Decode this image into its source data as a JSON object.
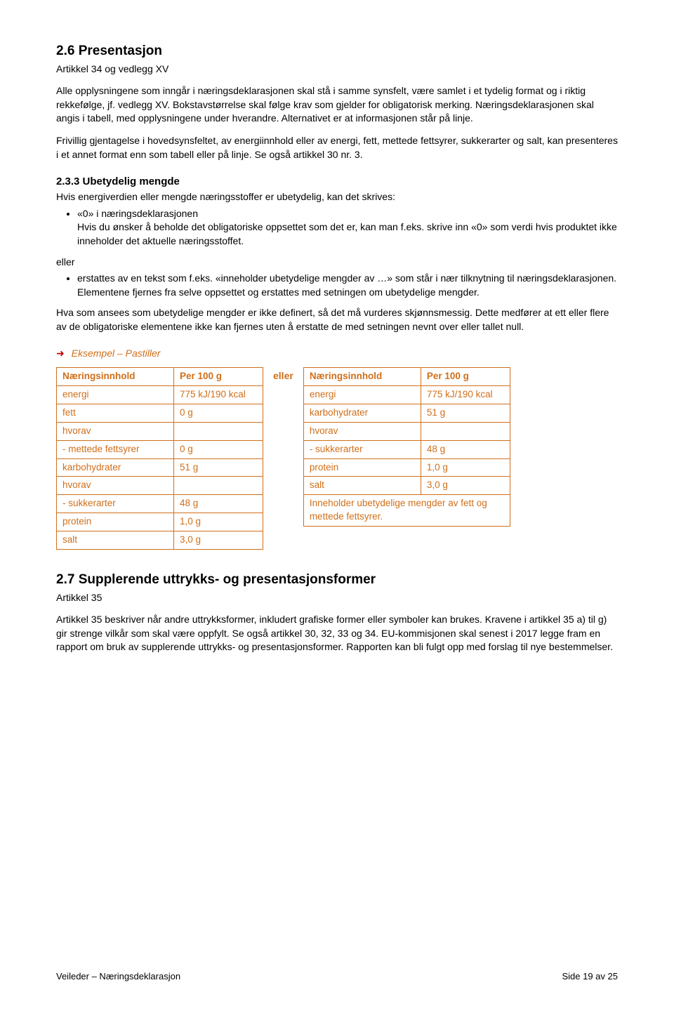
{
  "colors": {
    "accent": "#d06f1a",
    "arrow": "#c00000",
    "text": "#000000",
    "background": "#ffffff"
  },
  "section26": {
    "heading": "2.6 Presentasjon",
    "subheading": "Artikkel 34 og vedlegg XV",
    "para1": "Alle opplysningene som inngår i næringsdeklarasjonen skal stå i samme synsfelt, være samlet i et tydelig format og i riktig rekkefølge, jf. vedlegg XV. Bokstavstørrelse skal følge krav som gjelder for obligatorisk merking. Næringsdeklarasjonen skal angis i tabell, med opplysningene under hverandre. Alternativet er at informasjonen står på linje.",
    "para2": "Frivillig gjentagelse i hovedsynsfeltet, av energiinnhold eller av energi, fett, mettede fettsyrer, sukkerarter og salt, kan presenteres i et annet format enn som tabell eller på linje. Se også artikkel 30 nr. 3."
  },
  "section233": {
    "heading": "2.3.3 Ubetydelig mengde",
    "intro": "Hvis energiverdien eller mengde næringsstoffer er ubetydelig, kan det skrives:",
    "bullet1_lead": "«0» i næringsdeklarasjonen",
    "bullet1_body": "Hvis du ønsker å beholde det obligatoriske oppsettet som det er, kan man f.eks. skrive inn «0» som verdi hvis produktet ikke inneholder det aktuelle næringsstoffet.",
    "eller": "eller",
    "bullet2": "erstattes av en tekst som f.eks. «inneholder ubetydelige mengder av …» som står i nær tilknytning til næringsdeklarasjonen. Elementene fjernes fra selve oppsettet og erstattes med setningen om ubetydelige mengder.",
    "para_after": "Hva som ansees som ubetydelige mengder er ikke definert, så det må vurderes skjønnsmessig. Dette medfører at ett eller flere av de obligatoriske elementene ikke kan fjernes uten å erstatte de med setningen nevnt over eller tallet null."
  },
  "example": {
    "title": "Eksempel – Pastiller",
    "eller": "eller",
    "table_left": {
      "header": [
        "Næringsinnhold",
        "Per 100 g"
      ],
      "rows": [
        [
          "energi",
          "775 kJ/190 kcal"
        ],
        [
          "fett",
          "0 g"
        ],
        [
          "hvorav",
          ""
        ],
        [
          "- mettede fettsyrer",
          "0 g"
        ],
        [
          "karbohydrater",
          "51 g"
        ],
        [
          "hvorav",
          ""
        ],
        [
          "- sukkerarter",
          "48 g"
        ],
        [
          "protein",
          "1,0 g"
        ],
        [
          "salt",
          "3,0 g"
        ]
      ],
      "col_widths": [
        "150px",
        "110px"
      ]
    },
    "table_right": {
      "header": [
        "Næringsinnhold",
        "Per 100 g"
      ],
      "rows": [
        [
          "energi",
          "775 kJ/190 kcal"
        ],
        [
          "karbohydrater",
          "51 g"
        ],
        [
          "hvorav",
          ""
        ],
        [
          "- sukkerarter",
          "48 g"
        ],
        [
          "protein",
          "1,0 g"
        ],
        [
          "salt",
          "3,0 g"
        ]
      ],
      "footer_merged": "Inneholder ubetydelige mengder av fett og mettede fettsyrer.",
      "col_widths": [
        "150px",
        "110px"
      ]
    }
  },
  "section27": {
    "heading": "2.7 Supplerende uttrykks- og presentasjonsformer",
    "subheading": "Artikkel 35",
    "para": "Artikkel 35 beskriver når andre uttrykksformer, inkludert grafiske former eller symboler kan brukes. Kravene i artikkel 35 a) til g) gir strenge vilkår som skal være oppfylt. Se også artikkel 30, 32, 33 og 34.  EU-kommisjonen skal senest i 2017 legge fram en rapport om bruk av supplerende uttrykks- og presentasjonsformer. Rapporten kan bli fulgt opp med forslag til nye bestemmelser."
  },
  "footer": {
    "left": "Veileder – Næringsdeklarasjon",
    "right": "Side 19 av 25"
  }
}
